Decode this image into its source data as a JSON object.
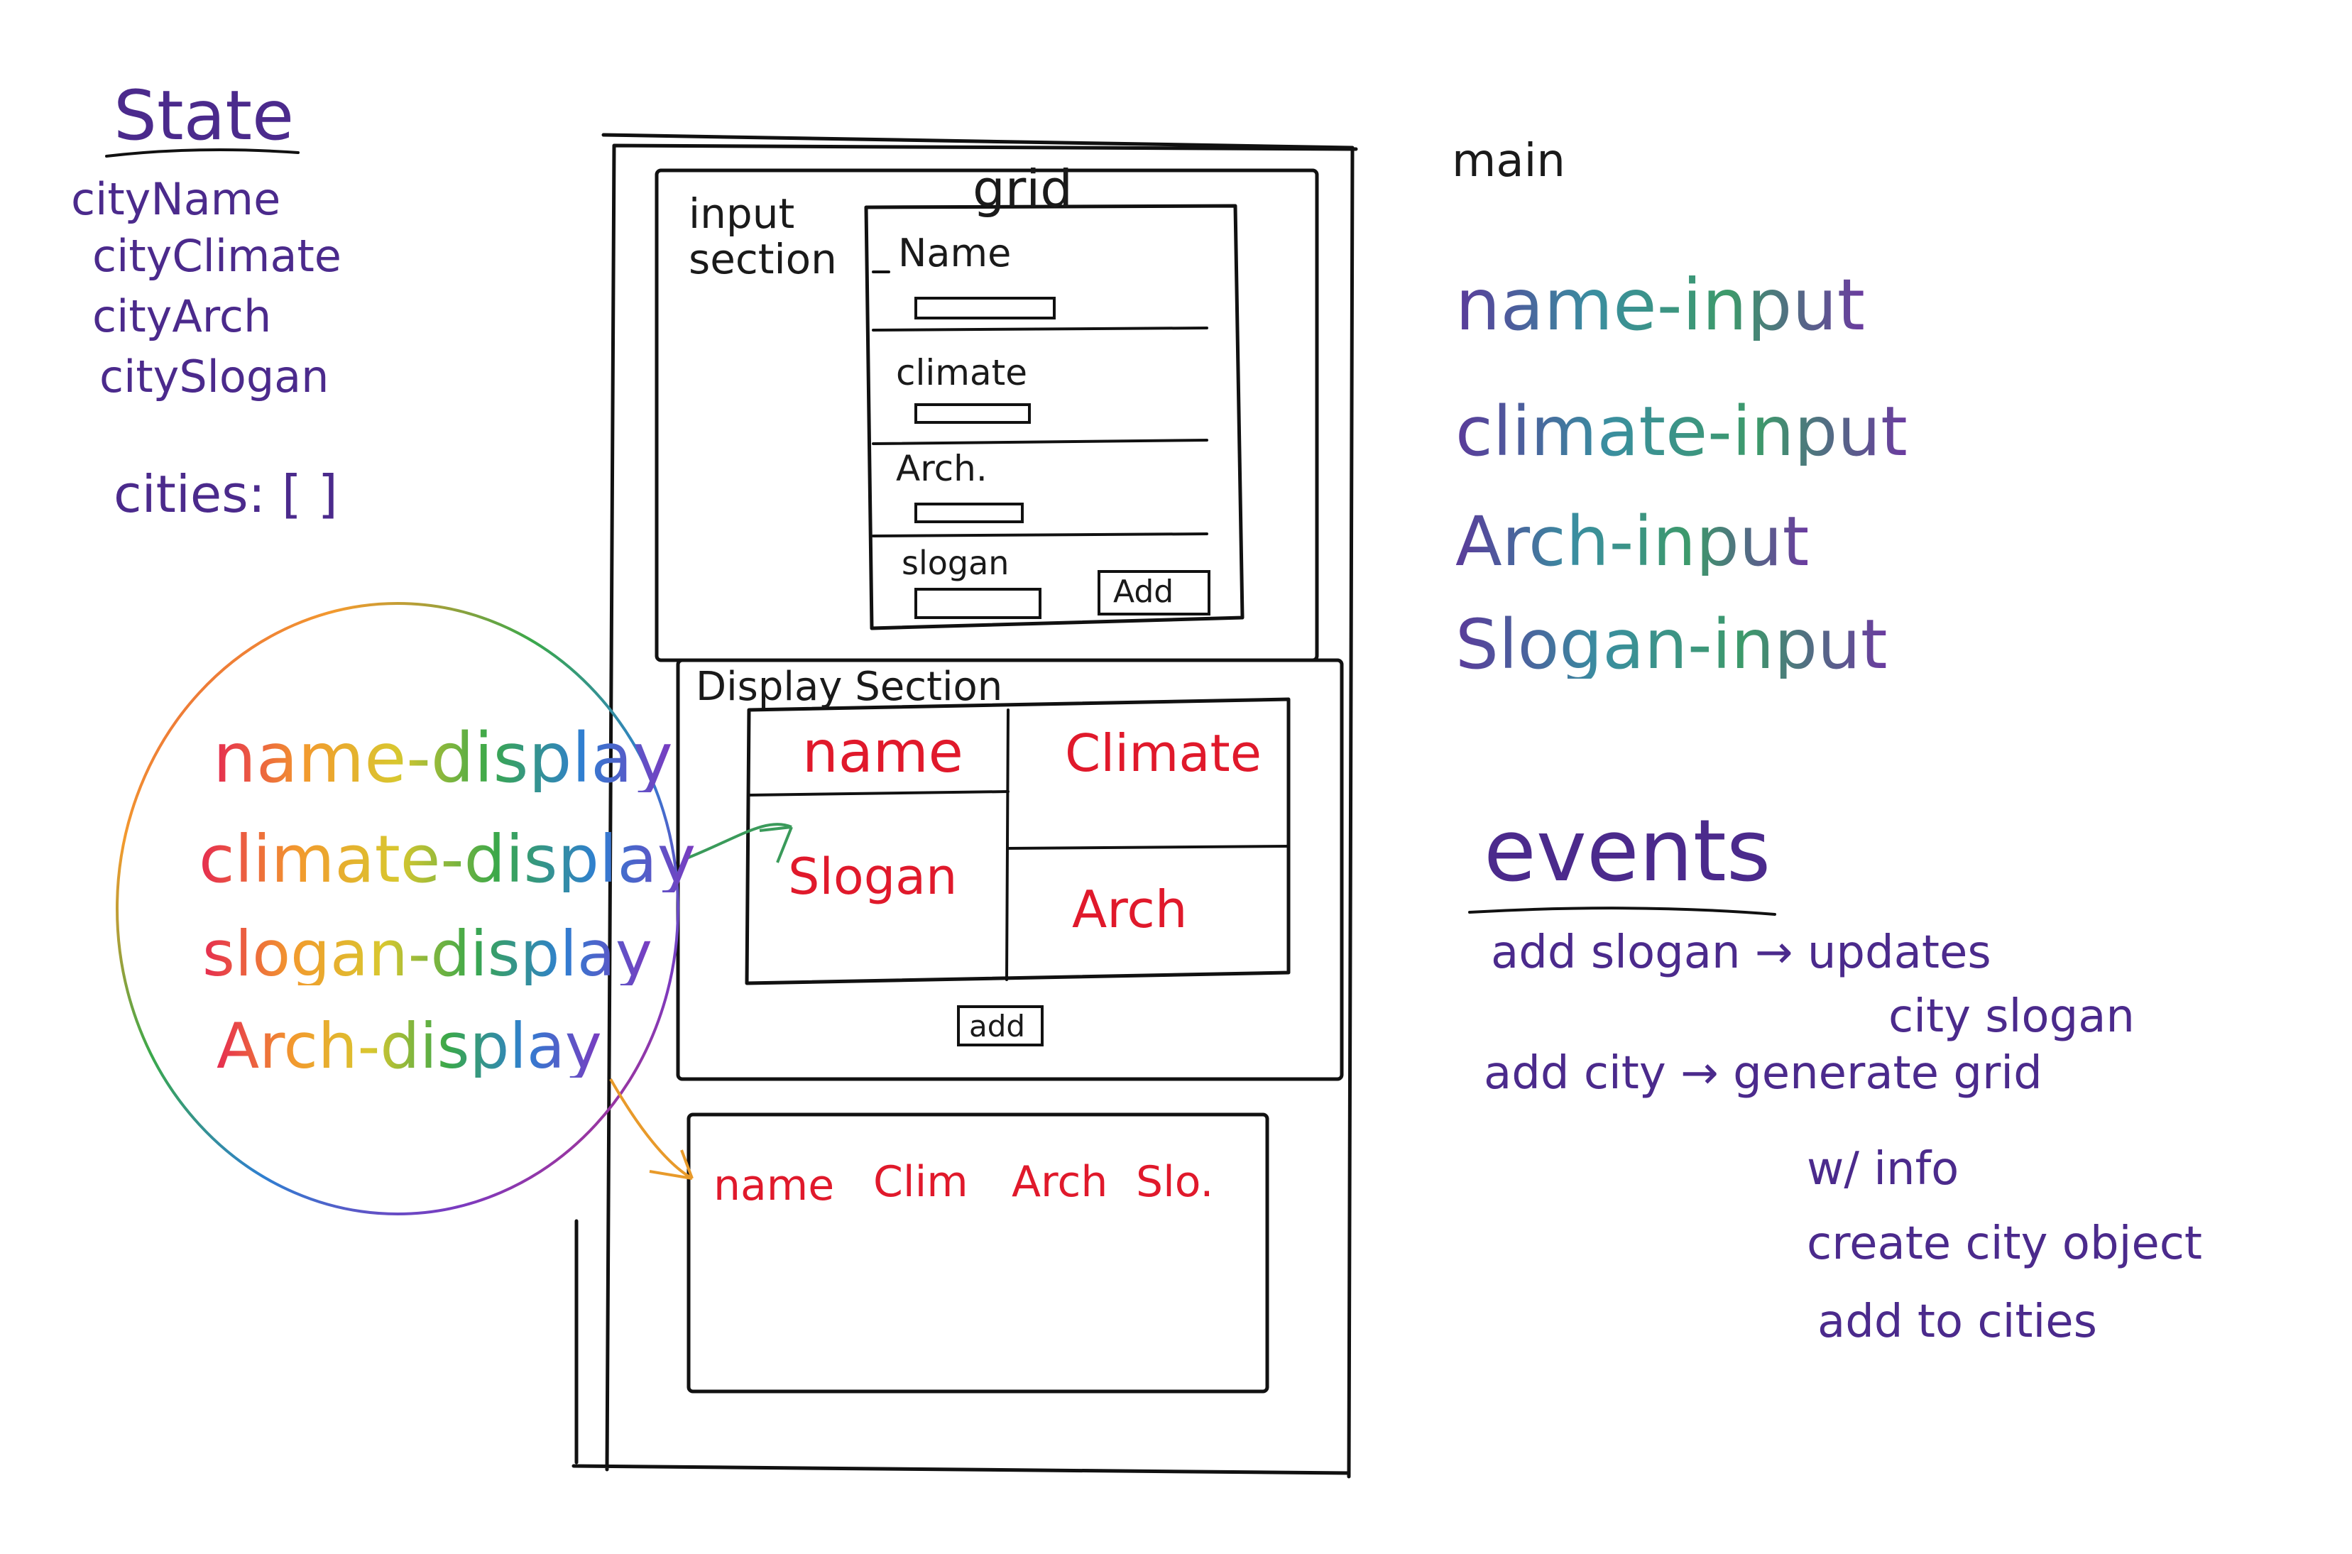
{
  "state": {
    "title": "State",
    "items": [
      "cityName",
      "cityClimate",
      "cityArch",
      "citySlogan",
      "cities: [ ]"
    ]
  },
  "main_label": "main",
  "input_section": {
    "label": "input section",
    "grid_label": "grid",
    "fields": [
      "Name",
      "climate",
      "Arch.",
      "slogan"
    ],
    "add_button": "Add"
  },
  "display_section": {
    "label": "Display Section",
    "cells": {
      "name": "name",
      "climate": "Climate",
      "slogan": "Slogan",
      "arch": "Arch"
    },
    "add_button": "add"
  },
  "list_section": {
    "row": [
      "name",
      "Clim",
      "Arch",
      "Slo."
    ]
  },
  "input_ids": [
    "name-input",
    "climate-input",
    "Arch-input",
    "Slogan-input"
  ],
  "display_ids": [
    "name-display",
    "climate-display",
    "slogan-display",
    "Arch-display"
  ],
  "events": {
    "title": "events",
    "lines": [
      "add slogan → updates",
      "city slogan",
      "add city → generate grid",
      "w/ info",
      "create city object",
      "add to cities"
    ]
  }
}
